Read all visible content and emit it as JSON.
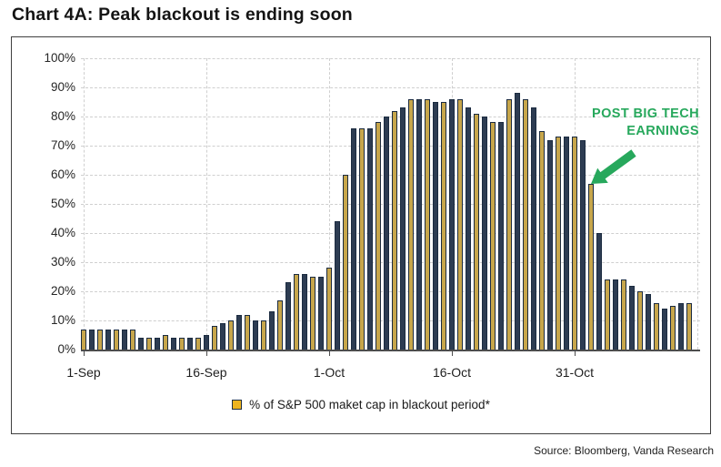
{
  "title": "Chart 4A: Peak blackout is ending soon",
  "source": "Source: Bloomberg, Vanda Research",
  "annotation": {
    "line1": "POST BIG TECH",
    "line2": "EARNINGS",
    "color": "#27a85c"
  },
  "legend": {
    "label": "% of S&P 500 maket cap in blackout period*",
    "swatch_fill": "#edb41f",
    "swatch_border": "#1f3044"
  },
  "chart_data": {
    "type": "bar",
    "title": "Chart 4A: Peak blackout is ending soon",
    "xlabel": "",
    "ylabel": "",
    "ylim": [
      0,
      100
    ],
    "grid": true,
    "legend_position": "bottom",
    "y_ticks": [
      "0%",
      "10%",
      "20%",
      "30%",
      "40%",
      "50%",
      "60%",
      "70%",
      "80%",
      "90%",
      "100%"
    ],
    "x_ticks": [
      {
        "label": "1-Sep",
        "index": 0
      },
      {
        "label": "16-Sep",
        "index": 15
      },
      {
        "label": "1-Oct",
        "index": 30
      },
      {
        "label": "16-Oct",
        "index": 45
      },
      {
        "label": "31-Oct",
        "index": 60
      }
    ],
    "right_gridline_index": 75,
    "series": [
      {
        "name": "% of S&P 500 maket cap in blackout period*",
        "values": [
          7,
          7,
          7,
          7,
          7,
          7,
          7,
          4,
          4,
          4,
          5,
          4,
          4,
          4,
          4,
          5,
          8,
          9,
          10,
          12,
          12,
          10,
          10,
          13,
          17,
          23,
          26,
          26,
          25,
          25,
          28,
          44,
          60,
          76,
          76,
          76,
          78,
          80,
          82,
          83,
          86,
          86,
          86,
          85,
          85,
          86,
          86,
          83,
          81,
          80,
          78,
          78,
          86,
          88,
          86,
          83,
          75,
          72,
          73,
          73,
          73,
          72,
          57,
          40,
          24,
          24,
          24,
          22,
          20,
          19,
          16,
          14,
          15,
          16,
          16
        ]
      }
    ],
    "bar_colors": {
      "gold": "#c7a64b",
      "navy": "#2d3c52",
      "border": "#1b2b40",
      "pattern": "alternating gold/navy"
    }
  }
}
